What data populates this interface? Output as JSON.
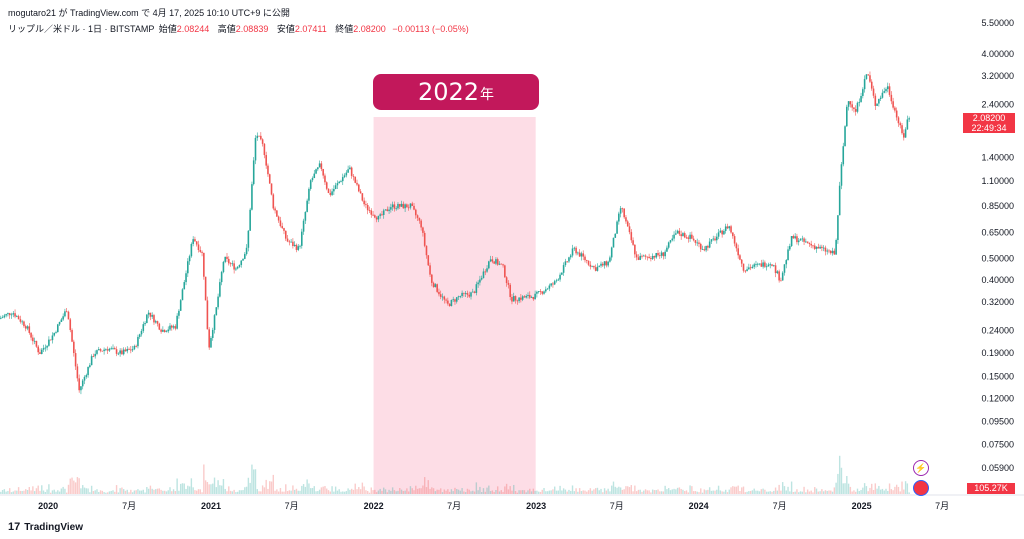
{
  "header": {
    "published": "mogutaro21 が TradingView.com で 4月 17, 2025 10:10 UTC+9 に公開"
  },
  "legend": {
    "symbol": "リップル／米ドル · 1日 · BITSTAMP",
    "open_label": "始値",
    "open": "2.08244",
    "high_label": "高値",
    "high": "2.08839",
    "low_label": "安値",
    "low": "2.07411",
    "close_label": "終値",
    "close": "2.08200",
    "change": "−0.00113 (−0.05%)"
  },
  "highlight": {
    "label": "2022",
    "unit": "年",
    "color": "#c2185b",
    "fill": "#fddde6"
  },
  "price_tag": {
    "price": "2.08200",
    "countdown": "22:49:34"
  },
  "volume_tag": "105.27K",
  "footer": {
    "brand": "TradingView"
  },
  "icons": [
    "lightning-icon",
    "flag-icon",
    "tradingview-logo-icon"
  ],
  "colors": {
    "up": "#26a69a",
    "down": "#ef5350",
    "accent": "#f23645"
  },
  "chart_data": {
    "type": "candlestick",
    "scale": "log",
    "y_ticks": [
      "5.50000",
      "4.00000",
      "3.20000",
      "2.40000",
      "1.40000",
      "1.10000",
      "0.85000",
      "0.65000",
      "0.50000",
      "0.40000",
      "0.32000",
      "0.24000",
      "0.19000",
      "0.15000",
      "0.12000",
      "0.09500",
      "0.07500",
      "0.05900"
    ],
    "y_tick_values": [
      5.5,
      4.0,
      3.2,
      2.4,
      1.4,
      1.1,
      0.85,
      0.65,
      0.5,
      0.4,
      0.32,
      0.24,
      0.19,
      0.15,
      0.12,
      0.095,
      0.075,
      0.059
    ],
    "x_ticks": [
      "2020",
      "7月",
      "2021",
      "7月",
      "2022",
      "7月",
      "2023",
      "7月",
      "2024",
      "7月",
      "2025",
      "7月"
    ],
    "x_tick_dates": [
      "2020-01-01",
      "2020-07-01",
      "2021-01-01",
      "2021-07-01",
      "2022-01-01",
      "2022-07-01",
      "2023-01-01",
      "2023-07-01",
      "2024-01-01",
      "2024-07-01",
      "2025-01-01",
      "2025-07-01"
    ],
    "x_range": [
      "2019-09-15",
      "2025-08-10"
    ],
    "y_range": [
      0.059,
      5.5
    ],
    "price_path": [
      {
        "date": "2019-09-15",
        "price": 0.27
      },
      {
        "date": "2019-10-15",
        "price": 0.29
      },
      {
        "date": "2019-11-15",
        "price": 0.25
      },
      {
        "date": "2019-12-15",
        "price": 0.19
      },
      {
        "date": "2020-01-15",
        "price": 0.23
      },
      {
        "date": "2020-02-15",
        "price": 0.3
      },
      {
        "date": "2020-03-13",
        "price": 0.13
      },
      {
        "date": "2020-04-15",
        "price": 0.19
      },
      {
        "date": "2020-05-15",
        "price": 0.2
      },
      {
        "date": "2020-06-15",
        "price": 0.19
      },
      {
        "date": "2020-07-15",
        "price": 0.2
      },
      {
        "date": "2020-08-15",
        "price": 0.29
      },
      {
        "date": "2020-09-15",
        "price": 0.24
      },
      {
        "date": "2020-10-15",
        "price": 0.25
      },
      {
        "date": "2020-11-24",
        "price": 0.62
      },
      {
        "date": "2020-12-15",
        "price": 0.52
      },
      {
        "date": "2020-12-29",
        "price": 0.2
      },
      {
        "date": "2021-01-15",
        "price": 0.3
      },
      {
        "date": "2021-02-01",
        "price": 0.5
      },
      {
        "date": "2021-03-01",
        "price": 0.45
      },
      {
        "date": "2021-03-25",
        "price": 0.55
      },
      {
        "date": "2021-04-14",
        "price": 1.8
      },
      {
        "date": "2021-05-01",
        "price": 1.55
      },
      {
        "date": "2021-05-23",
        "price": 0.85
      },
      {
        "date": "2021-06-22",
        "price": 0.6
      },
      {
        "date": "2021-07-20",
        "price": 0.55
      },
      {
        "date": "2021-08-15",
        "price": 1.1
      },
      {
        "date": "2021-09-06",
        "price": 1.3
      },
      {
        "date": "2021-09-25",
        "price": 0.95
      },
      {
        "date": "2021-11-10",
        "price": 1.25
      },
      {
        "date": "2021-12-15",
        "price": 0.85
      },
      {
        "date": "2022-01-15",
        "price": 0.75
      },
      {
        "date": "2022-02-10",
        "price": 0.85
      },
      {
        "date": "2022-03-28",
        "price": 0.85
      },
      {
        "date": "2022-04-20",
        "price": 0.7
      },
      {
        "date": "2022-05-12",
        "price": 0.4
      },
      {
        "date": "2022-06-18",
        "price": 0.31
      },
      {
        "date": "2022-07-15",
        "price": 0.34
      },
      {
        "date": "2022-08-15",
        "price": 0.35
      },
      {
        "date": "2022-09-23",
        "price": 0.5
      },
      {
        "date": "2022-10-20",
        "price": 0.46
      },
      {
        "date": "2022-11-09",
        "price": 0.33
      },
      {
        "date": "2022-12-31",
        "price": 0.34
      },
      {
        "date": "2023-02-15",
        "price": 0.39
      },
      {
        "date": "2023-03-29",
        "price": 0.55
      },
      {
        "date": "2023-05-15",
        "price": 0.45
      },
      {
        "date": "2023-06-15",
        "price": 0.48
      },
      {
        "date": "2023-07-13",
        "price": 0.85
      },
      {
        "date": "2023-08-17",
        "price": 0.5
      },
      {
        "date": "2023-10-15",
        "price": 0.52
      },
      {
        "date": "2023-11-15",
        "price": 0.65
      },
      {
        "date": "2023-12-15",
        "price": 0.62
      },
      {
        "date": "2024-01-15",
        "price": 0.55
      },
      {
        "date": "2024-03-11",
        "price": 0.7
      },
      {
        "date": "2024-04-13",
        "price": 0.45
      },
      {
        "date": "2024-06-15",
        "price": 0.48
      },
      {
        "date": "2024-07-05",
        "price": 0.4
      },
      {
        "date": "2024-07-31",
        "price": 0.62
      },
      {
        "date": "2024-09-15",
        "price": 0.57
      },
      {
        "date": "2024-11-05",
        "price": 0.52
      },
      {
        "date": "2024-11-16",
        "price": 1.1
      },
      {
        "date": "2024-12-03",
        "price": 2.6
      },
      {
        "date": "2024-12-20",
        "price": 2.2
      },
      {
        "date": "2025-01-16",
        "price": 3.35
      },
      {
        "date": "2025-02-03",
        "price": 2.4
      },
      {
        "date": "2025-03-02",
        "price": 2.9
      },
      {
        "date": "2025-04-07",
        "price": 1.7
      },
      {
        "date": "2025-04-17",
        "price": 2.082
      }
    ],
    "highlight_range": [
      "2022-01-01",
      "2022-12-31"
    ]
  }
}
